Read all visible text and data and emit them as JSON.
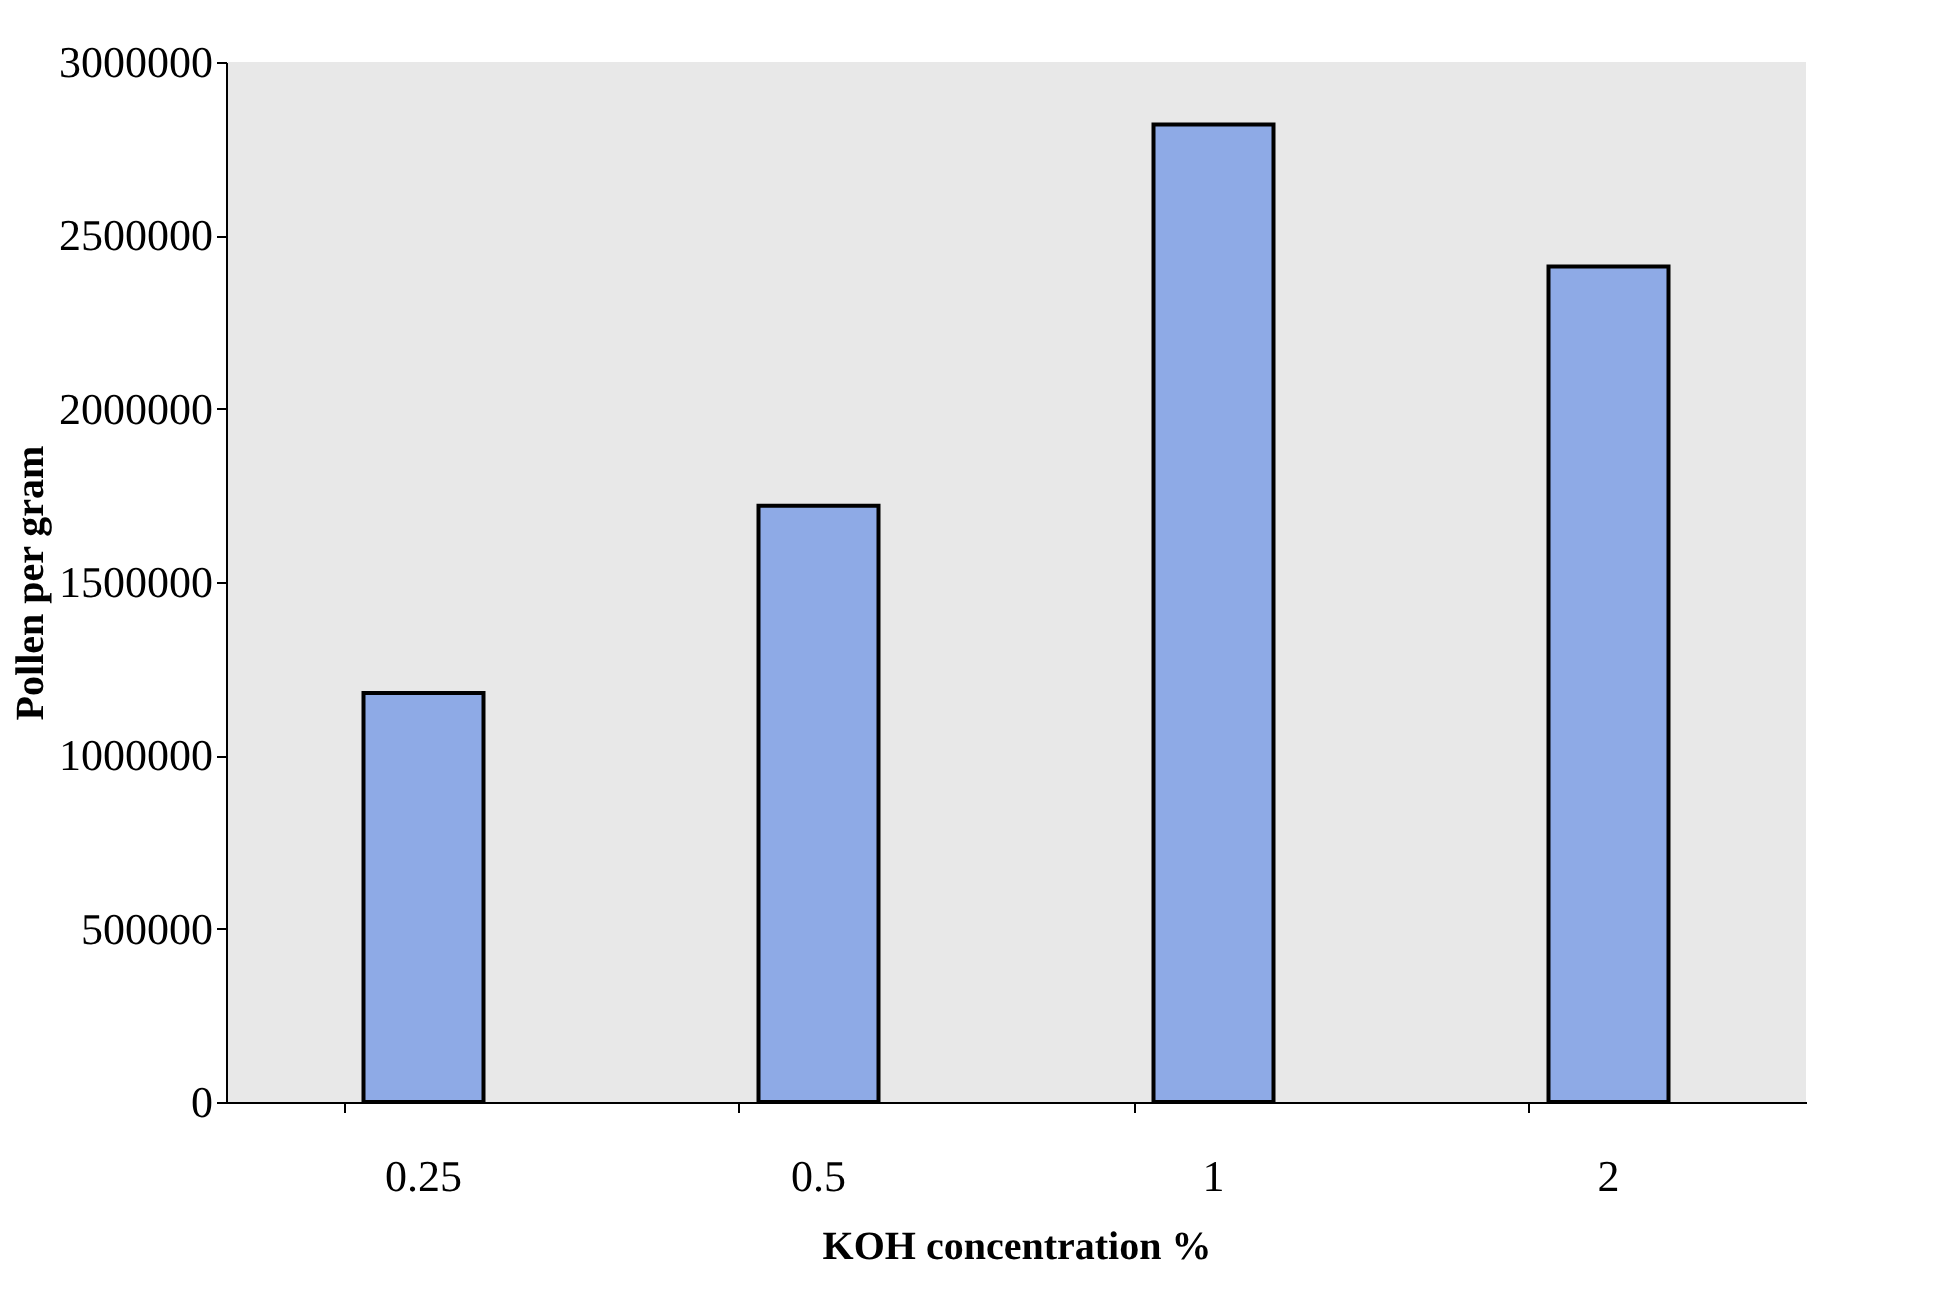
{
  "chart_data": {
    "type": "bar",
    "xlabel": "KOH concentration %",
    "ylabel": "Pollen per gram",
    "categories": [
      "0.25",
      "0.5",
      "1",
      "2"
    ],
    "values": [
      1180000,
      1720000,
      2820000,
      2410000
    ],
    "color": "#8eaae6",
    "ylim": [
      0,
      3000000
    ],
    "yticks": [
      0,
      500000,
      1000000,
      1500000,
      2000000,
      2500000,
      3000000
    ],
    "grid": false
  }
}
